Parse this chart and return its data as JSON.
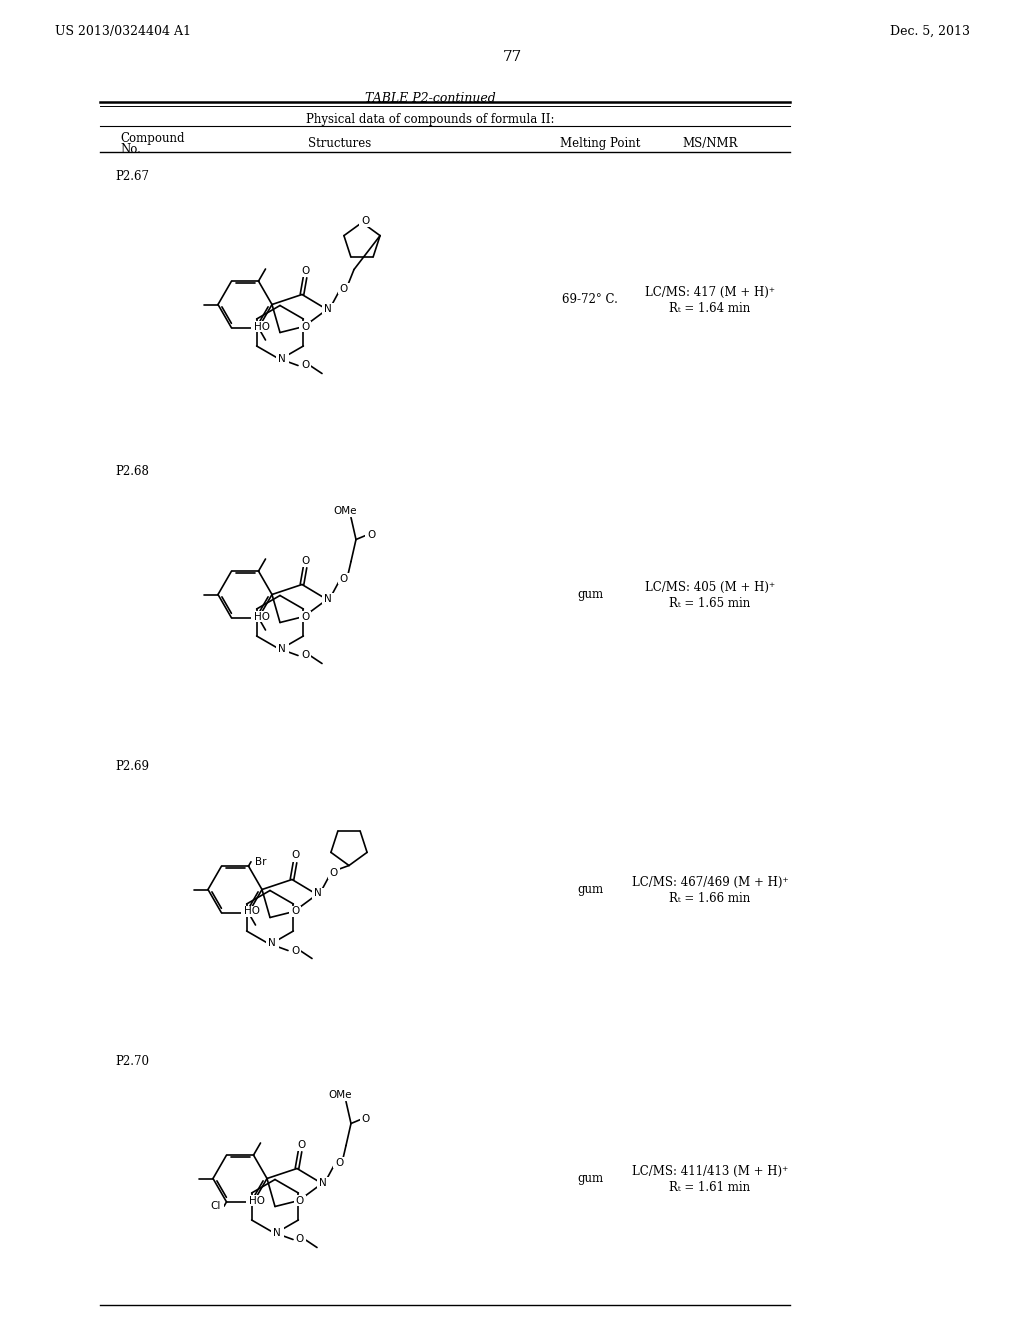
{
  "page_left": "US 2013/0324404 A1",
  "page_right": "Dec. 5, 2013",
  "page_number": "77",
  "table_title": "TABLE P2-continued",
  "table_subtitle": "Physical data of compounds of formula II:",
  "bg_color": "#ffffff",
  "text_color": "#000000",
  "line_color": "#000000",
  "compounds": [
    {
      "id": "P2.67",
      "mp": "69-72° C.",
      "ms": "LC/MS: 417 (M + H)⁺",
      "rt": "Rₜ = 1.64 min"
    },
    {
      "id": "P2.68",
      "mp": "gum",
      "ms": "LC/MS: 405 (M + H)⁺",
      "rt": "Rₜ = 1.65 min"
    },
    {
      "id": "P2.69",
      "mp": "gum",
      "ms": "LC/MS: 467/469 (M + H)⁺",
      "rt": "Rₜ = 1.66 min"
    },
    {
      "id": "P2.70",
      "mp": "gum",
      "ms": "LC/MS: 411/413 (M + H)⁺",
      "rt": "Rₜ = 1.61 min"
    }
  ]
}
